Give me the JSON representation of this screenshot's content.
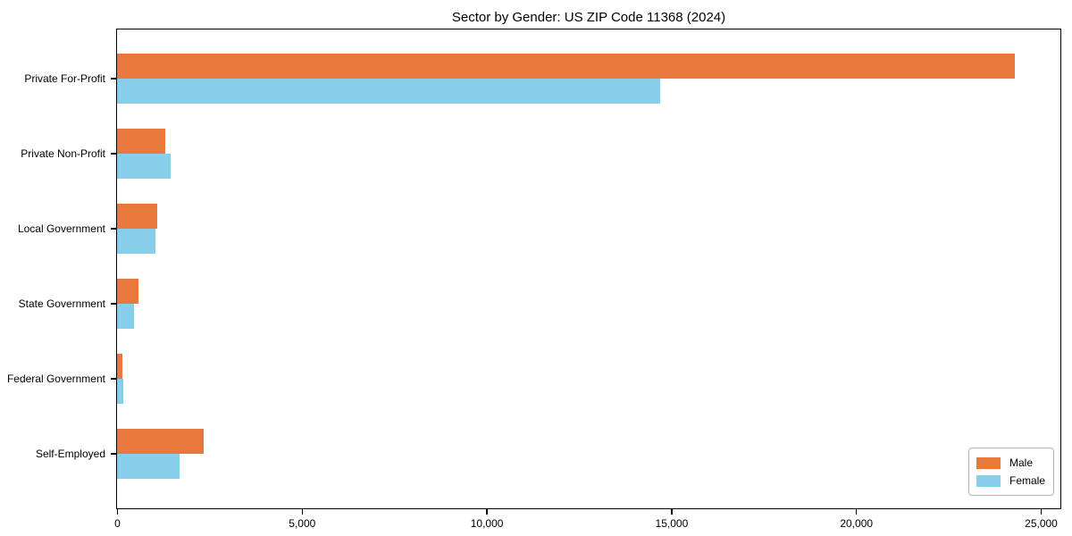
{
  "chart_data": {
    "type": "bar",
    "orientation": "horizontal",
    "title": "Sector by Gender: US ZIP Code 11368 (2024)",
    "categories": [
      "Private For-Profit",
      "Private Non-Profit",
      "Local Government",
      "State Government",
      "Federal Government",
      "Self-Employed"
    ],
    "series": [
      {
        "name": "Male",
        "color": "#e8783c",
        "values": [
          24300,
          1300,
          1080,
          570,
          150,
          2350
        ]
      },
      {
        "name": "Female",
        "color": "#87ceea",
        "values": [
          14700,
          1450,
          1040,
          450,
          180,
          1700
        ]
      }
    ],
    "xlabel": "",
    "ylabel": "",
    "xlim": [
      0,
      25000
    ],
    "x_ticks": [
      0,
      5000,
      10000,
      15000,
      20000,
      25000
    ],
    "x_tick_labels": [
      "0",
      "5,000",
      "10,000",
      "15,000",
      "20,000",
      "25,000"
    ],
    "grid": false,
    "legend": {
      "position": "lower right",
      "entries": [
        "Male",
        "Female"
      ]
    }
  }
}
